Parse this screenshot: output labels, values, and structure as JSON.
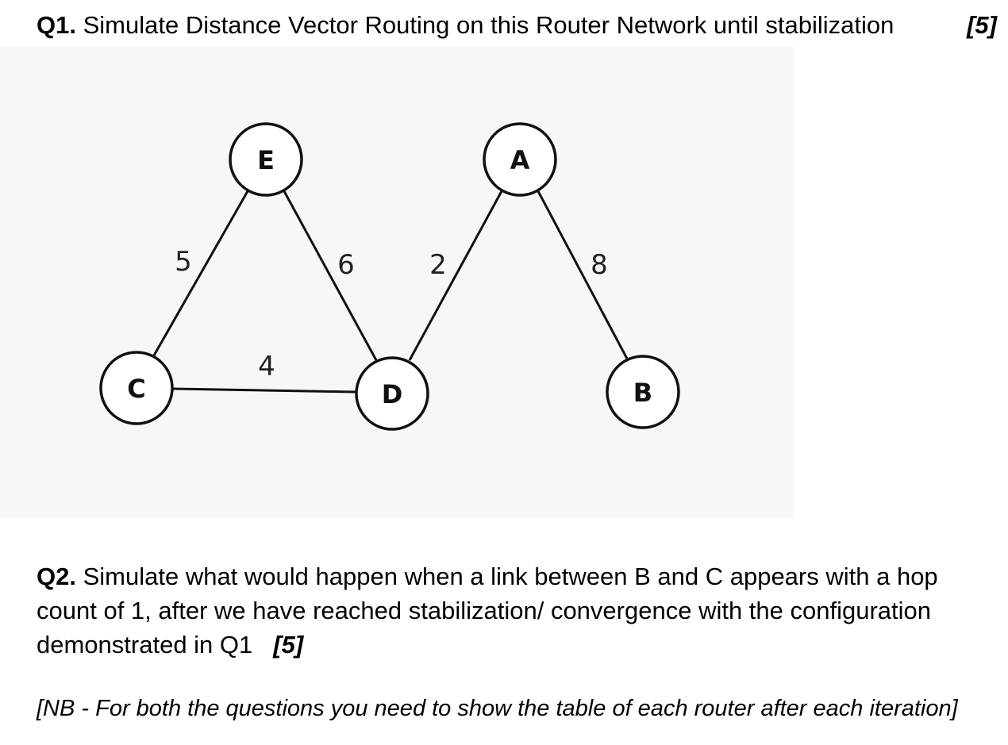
{
  "q1": {
    "number": "Q1.",
    "text": "Simulate Distance Vector Routing on this Router Network until stabilization",
    "marks": "[5]"
  },
  "diagram": {
    "nodes": [
      {
        "id": "E",
        "label": "E"
      },
      {
        "id": "A",
        "label": "A"
      },
      {
        "id": "C",
        "label": "C"
      },
      {
        "id": "D",
        "label": "D"
      },
      {
        "id": "B",
        "label": "B"
      }
    ],
    "edges": [
      {
        "from": "E",
        "to": "C",
        "weight": "5"
      },
      {
        "from": "E",
        "to": "D",
        "weight": "6"
      },
      {
        "from": "A",
        "to": "D",
        "weight": "2"
      },
      {
        "from": "A",
        "to": "B",
        "weight": "8"
      },
      {
        "from": "C",
        "to": "D",
        "weight": "4"
      }
    ]
  },
  "q2": {
    "number": "Q2.",
    "text": "Simulate what would happen when a link between B and C appears with a hop count of 1, after we have reached stabilization/ convergence with the configuration demonstrated in Q1",
    "marks": "[5]"
  },
  "note": "[NB - For both the questions you need to show the table of each router after each iteration]"
}
